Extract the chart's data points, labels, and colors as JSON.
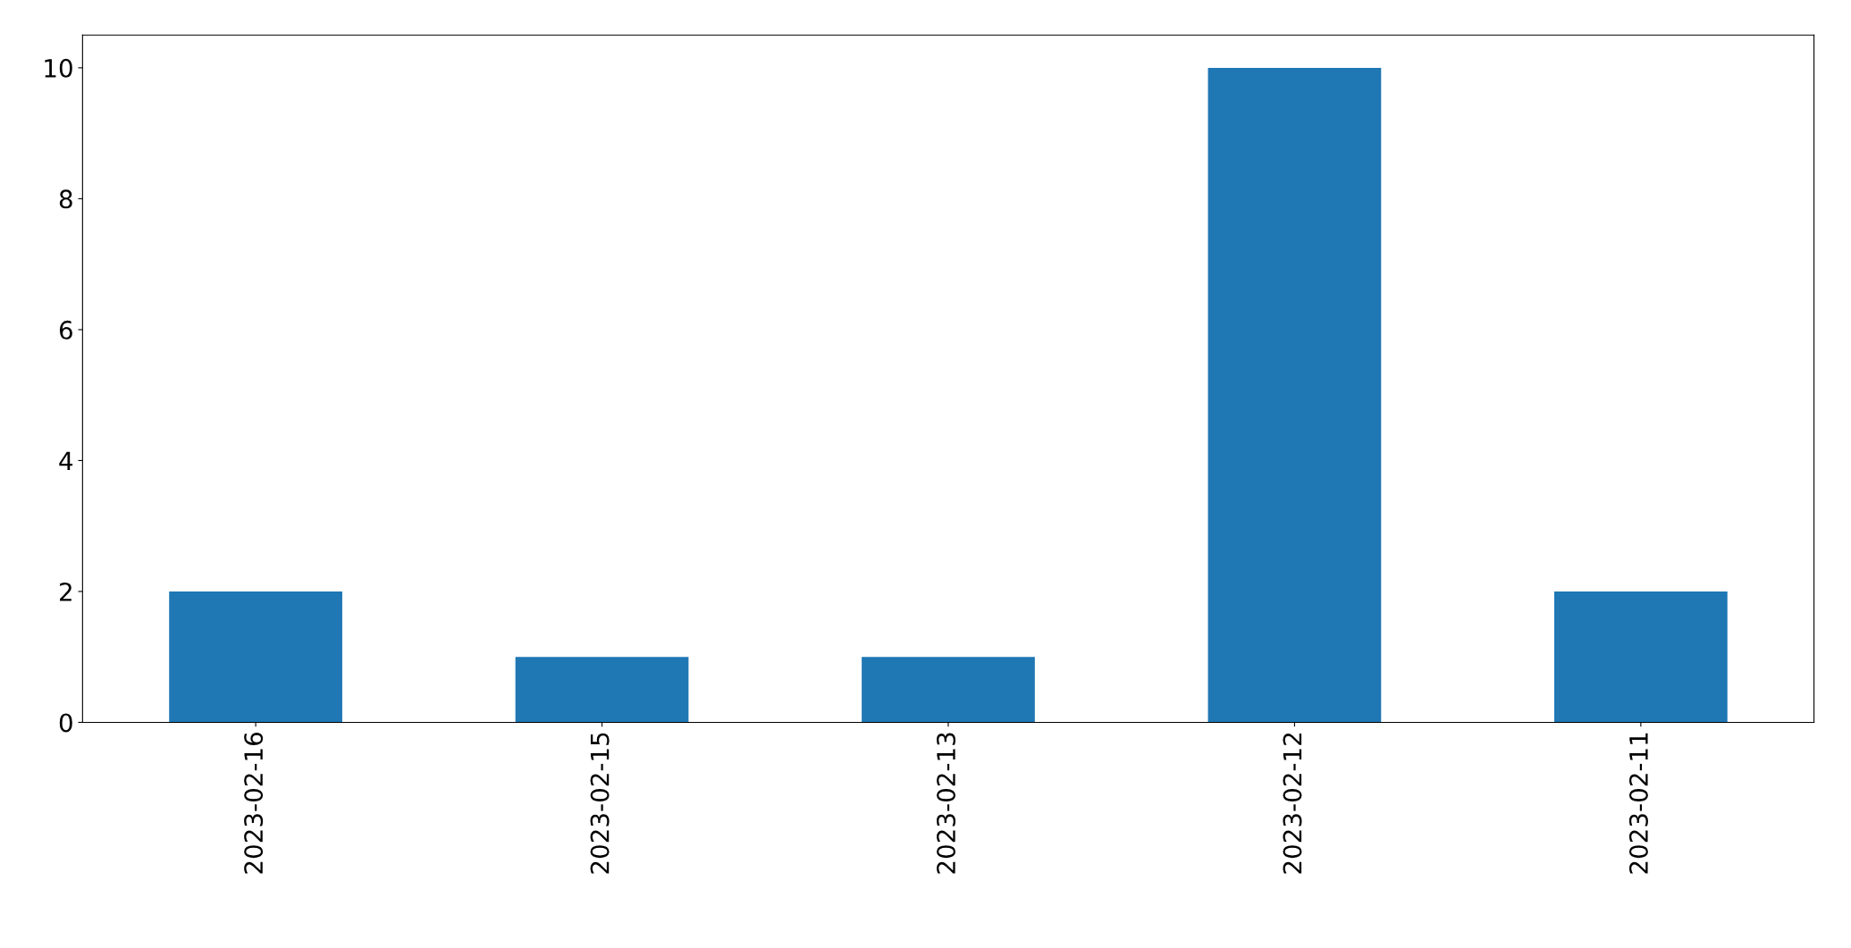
{
  "chart_data": {
    "type": "bar",
    "categories": [
      "2023-02-16",
      "2023-02-15",
      "2023-02-13",
      "2023-02-12",
      "2023-02-11"
    ],
    "values": [
      2,
      1,
      1,
      10,
      2
    ],
    "color": "#1f77b4",
    "ylim": [
      0,
      10.5
    ],
    "yticks": [
      0,
      2,
      4,
      6,
      8,
      10
    ],
    "grid": false,
    "legend": false
  }
}
